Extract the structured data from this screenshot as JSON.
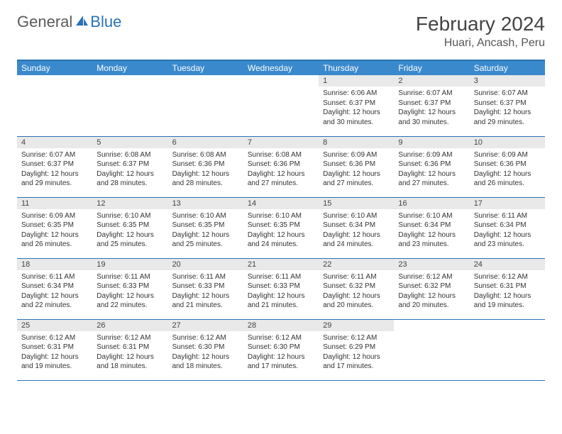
{
  "brand": {
    "part1": "General",
    "part2": "Blue"
  },
  "title": "February 2024",
  "location": "Huari, Ancash, Peru",
  "colors": {
    "header_bg": "#3a89cc",
    "header_text": "#ffffff",
    "border": "#2a72b5",
    "daynum_bg": "#e9e9e9",
    "body_text": "#333333",
    "logo_grey": "#5a5a5a",
    "logo_blue": "#2a72b5"
  },
  "weekdays": [
    "Sunday",
    "Monday",
    "Tuesday",
    "Wednesday",
    "Thursday",
    "Friday",
    "Saturday"
  ],
  "weeks": [
    [
      {
        "n": "",
        "sr": "",
        "ss": "",
        "dl": ""
      },
      {
        "n": "",
        "sr": "",
        "ss": "",
        "dl": ""
      },
      {
        "n": "",
        "sr": "",
        "ss": "",
        "dl": ""
      },
      {
        "n": "",
        "sr": "",
        "ss": "",
        "dl": ""
      },
      {
        "n": "1",
        "sr": "Sunrise: 6:06 AM",
        "ss": "Sunset: 6:37 PM",
        "dl": "Daylight: 12 hours and 30 minutes."
      },
      {
        "n": "2",
        "sr": "Sunrise: 6:07 AM",
        "ss": "Sunset: 6:37 PM",
        "dl": "Daylight: 12 hours and 30 minutes."
      },
      {
        "n": "3",
        "sr": "Sunrise: 6:07 AM",
        "ss": "Sunset: 6:37 PM",
        "dl": "Daylight: 12 hours and 29 minutes."
      }
    ],
    [
      {
        "n": "4",
        "sr": "Sunrise: 6:07 AM",
        "ss": "Sunset: 6:37 PM",
        "dl": "Daylight: 12 hours and 29 minutes."
      },
      {
        "n": "5",
        "sr": "Sunrise: 6:08 AM",
        "ss": "Sunset: 6:37 PM",
        "dl": "Daylight: 12 hours and 28 minutes."
      },
      {
        "n": "6",
        "sr": "Sunrise: 6:08 AM",
        "ss": "Sunset: 6:36 PM",
        "dl": "Daylight: 12 hours and 28 minutes."
      },
      {
        "n": "7",
        "sr": "Sunrise: 6:08 AM",
        "ss": "Sunset: 6:36 PM",
        "dl": "Daylight: 12 hours and 27 minutes."
      },
      {
        "n": "8",
        "sr": "Sunrise: 6:09 AM",
        "ss": "Sunset: 6:36 PM",
        "dl": "Daylight: 12 hours and 27 minutes."
      },
      {
        "n": "9",
        "sr": "Sunrise: 6:09 AM",
        "ss": "Sunset: 6:36 PM",
        "dl": "Daylight: 12 hours and 27 minutes."
      },
      {
        "n": "10",
        "sr": "Sunrise: 6:09 AM",
        "ss": "Sunset: 6:36 PM",
        "dl": "Daylight: 12 hours and 26 minutes."
      }
    ],
    [
      {
        "n": "11",
        "sr": "Sunrise: 6:09 AM",
        "ss": "Sunset: 6:35 PM",
        "dl": "Daylight: 12 hours and 26 minutes."
      },
      {
        "n": "12",
        "sr": "Sunrise: 6:10 AM",
        "ss": "Sunset: 6:35 PM",
        "dl": "Daylight: 12 hours and 25 minutes."
      },
      {
        "n": "13",
        "sr": "Sunrise: 6:10 AM",
        "ss": "Sunset: 6:35 PM",
        "dl": "Daylight: 12 hours and 25 minutes."
      },
      {
        "n": "14",
        "sr": "Sunrise: 6:10 AM",
        "ss": "Sunset: 6:35 PM",
        "dl": "Daylight: 12 hours and 24 minutes."
      },
      {
        "n": "15",
        "sr": "Sunrise: 6:10 AM",
        "ss": "Sunset: 6:34 PM",
        "dl": "Daylight: 12 hours and 24 minutes."
      },
      {
        "n": "16",
        "sr": "Sunrise: 6:10 AM",
        "ss": "Sunset: 6:34 PM",
        "dl": "Daylight: 12 hours and 23 minutes."
      },
      {
        "n": "17",
        "sr": "Sunrise: 6:11 AM",
        "ss": "Sunset: 6:34 PM",
        "dl": "Daylight: 12 hours and 23 minutes."
      }
    ],
    [
      {
        "n": "18",
        "sr": "Sunrise: 6:11 AM",
        "ss": "Sunset: 6:34 PM",
        "dl": "Daylight: 12 hours and 22 minutes."
      },
      {
        "n": "19",
        "sr": "Sunrise: 6:11 AM",
        "ss": "Sunset: 6:33 PM",
        "dl": "Daylight: 12 hours and 22 minutes."
      },
      {
        "n": "20",
        "sr": "Sunrise: 6:11 AM",
        "ss": "Sunset: 6:33 PM",
        "dl": "Daylight: 12 hours and 21 minutes."
      },
      {
        "n": "21",
        "sr": "Sunrise: 6:11 AM",
        "ss": "Sunset: 6:33 PM",
        "dl": "Daylight: 12 hours and 21 minutes."
      },
      {
        "n": "22",
        "sr": "Sunrise: 6:11 AM",
        "ss": "Sunset: 6:32 PM",
        "dl": "Daylight: 12 hours and 20 minutes."
      },
      {
        "n": "23",
        "sr": "Sunrise: 6:12 AM",
        "ss": "Sunset: 6:32 PM",
        "dl": "Daylight: 12 hours and 20 minutes."
      },
      {
        "n": "24",
        "sr": "Sunrise: 6:12 AM",
        "ss": "Sunset: 6:31 PM",
        "dl": "Daylight: 12 hours and 19 minutes."
      }
    ],
    [
      {
        "n": "25",
        "sr": "Sunrise: 6:12 AM",
        "ss": "Sunset: 6:31 PM",
        "dl": "Daylight: 12 hours and 19 minutes."
      },
      {
        "n": "26",
        "sr": "Sunrise: 6:12 AM",
        "ss": "Sunset: 6:31 PM",
        "dl": "Daylight: 12 hours and 18 minutes."
      },
      {
        "n": "27",
        "sr": "Sunrise: 6:12 AM",
        "ss": "Sunset: 6:30 PM",
        "dl": "Daylight: 12 hours and 18 minutes."
      },
      {
        "n": "28",
        "sr": "Sunrise: 6:12 AM",
        "ss": "Sunset: 6:30 PM",
        "dl": "Daylight: 12 hours and 17 minutes."
      },
      {
        "n": "29",
        "sr": "Sunrise: 6:12 AM",
        "ss": "Sunset: 6:29 PM",
        "dl": "Daylight: 12 hours and 17 minutes."
      },
      {
        "n": "",
        "sr": "",
        "ss": "",
        "dl": ""
      },
      {
        "n": "",
        "sr": "",
        "ss": "",
        "dl": ""
      }
    ]
  ]
}
